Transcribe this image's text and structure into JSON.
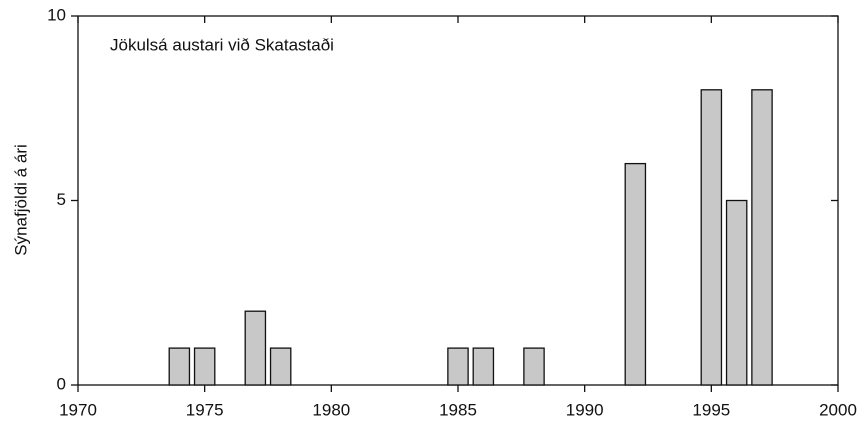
{
  "chart_data": {
    "type": "bar",
    "title": "Jökulsá austari við Skatastaði",
    "y_label": "Sýnafjöldi á ári",
    "x": [
      1974,
      1975,
      1977,
      1978,
      1985,
      1986,
      1988,
      1992,
      1995,
      1996,
      1997
    ],
    "values": [
      1,
      1,
      2,
      1,
      1,
      1,
      1,
      6,
      8,
      5,
      8
    ],
    "color": "#c8c8c8",
    "xlim": [
      1970,
      2000
    ],
    "xticks": [
      1970,
      1975,
      1980,
      1985,
      1990,
      1995,
      2000
    ],
    "ylim": [
      0,
      10
    ],
    "yticks": [
      0,
      5,
      10
    ],
    "grid": false
  }
}
